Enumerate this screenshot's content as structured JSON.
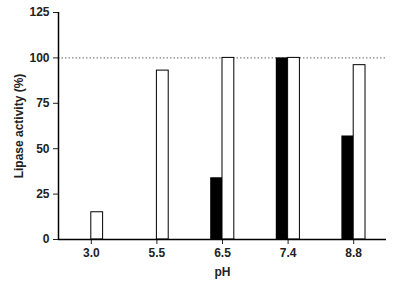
{
  "chart_data": {
    "type": "bar",
    "categories": [
      "3.0",
      "5.5",
      "6.5",
      "7.4",
      "8.8"
    ],
    "series": [
      {
        "color": "#000000",
        "values": [
          0,
          0,
          34,
          100,
          57
        ]
      },
      {
        "color": "#ffffff",
        "values": [
          15,
          93,
          100,
          100,
          96
        ]
      }
    ],
    "xlabel": "pH",
    "ylabel": "Lipase activity (%)",
    "ylim": [
      0,
      125
    ],
    "yticks": [
      0,
      25,
      50,
      75,
      100,
      125
    ],
    "reference_line": 100,
    "grid": false
  }
}
